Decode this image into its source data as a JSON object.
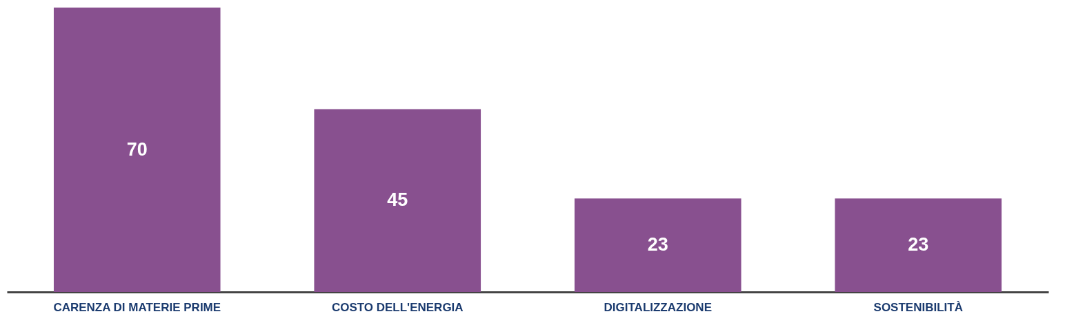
{
  "chart_data": {
    "type": "bar",
    "categories": [
      "CARENZA DI MATERIE PRIME",
      "COSTO DELL'ENERGIA",
      "DIGITALIZZAZIONE",
      "SOSTENIBILITÀ"
    ],
    "values": [
      70,
      45,
      23,
      23
    ],
    "color": "#88508f",
    "data_labels": true
  }
}
